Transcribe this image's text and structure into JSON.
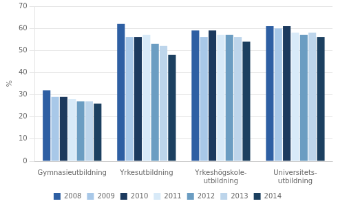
{
  "chart_data": {
    "type": "bar",
    "ylabel": "%",
    "categories": [
      "Gymnasieutbildning",
      "Yrkesutbildning",
      "Yrkeshögskole-\nutbildning",
      "Universitets-\nutbildning"
    ],
    "series": [
      {
        "name": "2008",
        "color": "#2E5FA3",
        "values": [
          32,
          62,
          59,
          61
        ]
      },
      {
        "name": "2009",
        "color": "#A8C8E8",
        "values": [
          29,
          56,
          56,
          60
        ]
      },
      {
        "name": "2010",
        "color": "#1C3A5E",
        "values": [
          29,
          56,
          59,
          61
        ]
      },
      {
        "name": "2011",
        "color": "#D8EAF8",
        "values": [
          28,
          57,
          57,
          58
        ]
      },
      {
        "name": "2012",
        "color": "#6B9DC2",
        "values": [
          27,
          53,
          57,
          57
        ]
      },
      {
        "name": "2013",
        "color": "#BDD5EB",
        "values": [
          27,
          52,
          56,
          58
        ]
      },
      {
        "name": "2014",
        "color": "#1C4060",
        "values": [
          26,
          48,
          54,
          56
        ]
      }
    ],
    "ylim": [
      0,
      70
    ],
    "yticks": [
      0,
      10,
      20,
      30,
      40,
      50,
      60,
      70
    ],
    "grid": true,
    "legend": "bottom"
  }
}
